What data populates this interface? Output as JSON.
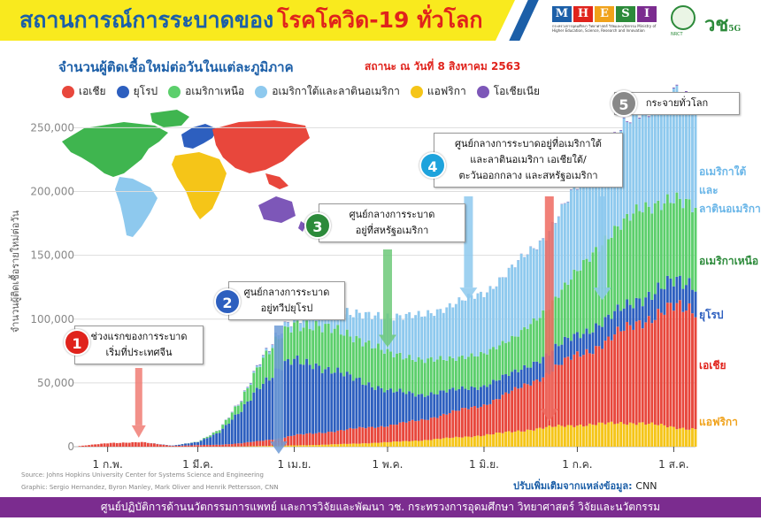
{
  "header": {
    "title_part1": "สถานการณ์การระบาดของ",
    "title_part2": "โรคโควิด-19 ทั่วโลก",
    "subtitle": "จำนวนผู้ติดเชื้อใหม่ต่อวันในแต่ละภูมิภาค",
    "status": "สถานะ ณ วันที่ 8 สิงหาคม 2563"
  },
  "logos": {
    "mhesi_letters": [
      "M",
      "H",
      "E",
      "S",
      "I"
    ],
    "mhesi_colors": [
      "#1c5fa8",
      "#e0231c",
      "#f0a21b",
      "#2c8a3a",
      "#7b2c8f"
    ],
    "mhesi_subtitle": "กระทรวงการอุดมศึกษา วิทยาศาสตร์ วิจัยและนวัตกรรม Ministry of Higher Education, Science, Research and Innovation",
    "nrct": "NRCT",
    "vch_main": "วช",
    "vch_suffix": "5G"
  },
  "legend": [
    {
      "label": "เอเชีย",
      "color": "#e8473c"
    },
    {
      "label": "ยุโรป",
      "color": "#2d5fbf"
    },
    {
      "label": "อเมริกาเหนือ",
      "color": "#5ccf6c"
    },
    {
      "label": "อเมริกาใต้และลาตินอเมริกา",
      "color": "#8ec9ee"
    },
    {
      "label": "แอฟริกา",
      "color": "#f5c518"
    },
    {
      "label": "โอเชียเนีย",
      "color": "#7d57b8"
    }
  ],
  "chart_data": {
    "type": "area",
    "ylabel": "จำนวนผู้ติดเชื้อรายใหม่ต่อวัน",
    "ylim": [
      0,
      260000
    ],
    "yticks": [
      "0",
      "50,000",
      "100,000",
      "150,000",
      "200,000",
      "250,000"
    ],
    "ytick_values": [
      0,
      50000,
      100000,
      150000,
      200000,
      250000
    ],
    "x_tick_labels": [
      "1 ก.พ.",
      "1 มี.ค.",
      "1 เม.ย.",
      "1 พ.ค.",
      "1 มิ.ย.",
      "1 ก.ค.",
      "1 ส.ค."
    ],
    "x_tick_days": [
      9,
      38,
      69,
      99,
      130,
      160,
      191
    ],
    "x_range_days": [
      0,
      198
    ],
    "day_axis_note": "days counted from 23 January 2020",
    "knots_day": [
      0,
      10,
      20,
      30,
      38,
      45,
      52,
      58,
      65,
      69,
      75,
      80,
      90,
      99,
      110,
      120,
      130,
      140,
      150,
      160,
      170,
      180,
      191,
      198
    ],
    "series": [
      {
        "name": "เอเชีย",
        "color": "#e8473c",
        "values": [
          500,
          3000,
          3500,
          600,
          1200,
          1500,
          2500,
          4000,
          6000,
          8000,
          9000,
          10000,
          12000,
          13000,
          16000,
          20000,
          24000,
          32000,
          42000,
          55000,
          65000,
          80000,
          93000,
          95000
        ]
      },
      {
        "name": "ยุโรป",
        "color": "#2d5fbf",
        "values": [
          0,
          0,
          0,
          300,
          2500,
          10000,
          25000,
          45000,
          55000,
          58000,
          56000,
          48000,
          38000,
          27000,
          20000,
          17000,
          15000,
          14000,
          15000,
          16000,
          17000,
          18000,
          20000,
          20000
        ]
      },
      {
        "name": "อเมริกาเหนือ",
        "color": "#5ccf6c",
        "values": [
          0,
          0,
          0,
          0,
          200,
          2000,
          8000,
          18000,
          25000,
          28000,
          30000,
          33000,
          32000,
          30000,
          27000,
          25000,
          25000,
          28000,
          35000,
          50000,
          65000,
          70000,
          65000,
          60000
        ]
      },
      {
        "name": "อเมริกาใต้และลาตินอเมริกา",
        "color": "#8ec9ee",
        "values": [
          0,
          0,
          0,
          0,
          0,
          100,
          500,
          1500,
          3000,
          5000,
          8000,
          12000,
          20000,
          28000,
          35000,
          42000,
          48000,
          55000,
          60000,
          65000,
          70000,
          76000,
          82000,
          80000
        ]
      },
      {
        "name": "แอฟริกา",
        "color": "#f5c518",
        "values": [
          0,
          0,
          0,
          0,
          0,
          50,
          200,
          500,
          800,
          1000,
          1300,
          1700,
          2500,
          3500,
          5000,
          7000,
          9000,
          12000,
          15000,
          17000,
          18000,
          19000,
          15000,
          14000
        ]
      },
      {
        "name": "โอเชียเนีย",
        "color": "#7d57b8",
        "values": [
          0,
          0,
          0,
          0,
          0,
          100,
          300,
          400,
          300,
          200,
          100,
          50,
          30,
          30,
          30,
          40,
          60,
          100,
          200,
          350,
          500,
          600,
          700,
          700
        ]
      }
    ],
    "series_end_labels": [
      {
        "text": "อเมริกาใต้และลาตินอเมริกา",
        "lines": [
          "อเมริกาใต้และ",
          "ลาตินอเมริกา"
        ],
        "color": "#6ab6e8"
      },
      {
        "text": "อเมริกาเหนือ",
        "lines": [
          "อเมริกาเหนือ"
        ],
        "color": "#2c8a3a"
      },
      {
        "text": "ยุโรป",
        "lines": [
          "ยุโรป"
        ],
        "color": "#2d5fbf"
      },
      {
        "text": "เอเชีย",
        "lines": [
          "เอเชีย"
        ],
        "color": "#e0231c"
      },
      {
        "text": "แอฟริกา",
        "lines": [
          "แอฟริกา"
        ],
        "color": "#f0a21b"
      }
    ],
    "annotations": [
      {
        "number": "1",
        "lines": [
          "ช่วงแรกของการระบาด",
          "เริ่มที่ประเทศจีน"
        ],
        "badge_color": "#e0231c",
        "arrow_color": "#f07d75"
      },
      {
        "number": "2",
        "lines": [
          "ศูนย์กลางการระบาด",
          "อยู่ทวีปยุโรป"
        ],
        "badge_color": "#2d5fbf",
        "arrow_color": "#6e9bd6"
      },
      {
        "number": "3",
        "lines": [
          "ศูนย์กลางการระบาด",
          "อยู่ที่สหรัฐอเมริกา"
        ],
        "badge_color": "#2c8a3a",
        "arrow_color": "#6ec97a"
      },
      {
        "number": "4",
        "lines": [
          "ศูนย์กลางการระบาดอยู่ที่อเมริกาใต้",
          "และลาตินอเมริกา เอเชียใต้/",
          "ตะวันออกกลาง และสหรัฐอเมริกา"
        ],
        "badge_color": "#1ea3dc",
        "arrow_color": "#ef6a60"
      },
      {
        "number": "5",
        "lines": [
          "กระจายทั่วโลก"
        ],
        "badge_color": "#888888",
        "arrow_color": "#888888"
      }
    ]
  },
  "source": {
    "line1": "Source: Johns Hopkins University Center for Systems Science and Engineering",
    "line2": "Graphic: Sergio Hernandez, Byron Manley, Mark Oliver and Henrik Pettersson, CNN"
  },
  "credit": {
    "prefix": "ปรับเพิ่มเติมจากแหล่งข้อมูล:",
    "name": "CNN"
  },
  "footer": "ศูนย์ปฏิบัติการด้านนวัตกรรมการแพทย์ และการวิจัยและพัฒนา  วช.   กระทรวงการอุดมศึกษา วิทยาศาสตร์ วิจัยและนวัตกรรม"
}
